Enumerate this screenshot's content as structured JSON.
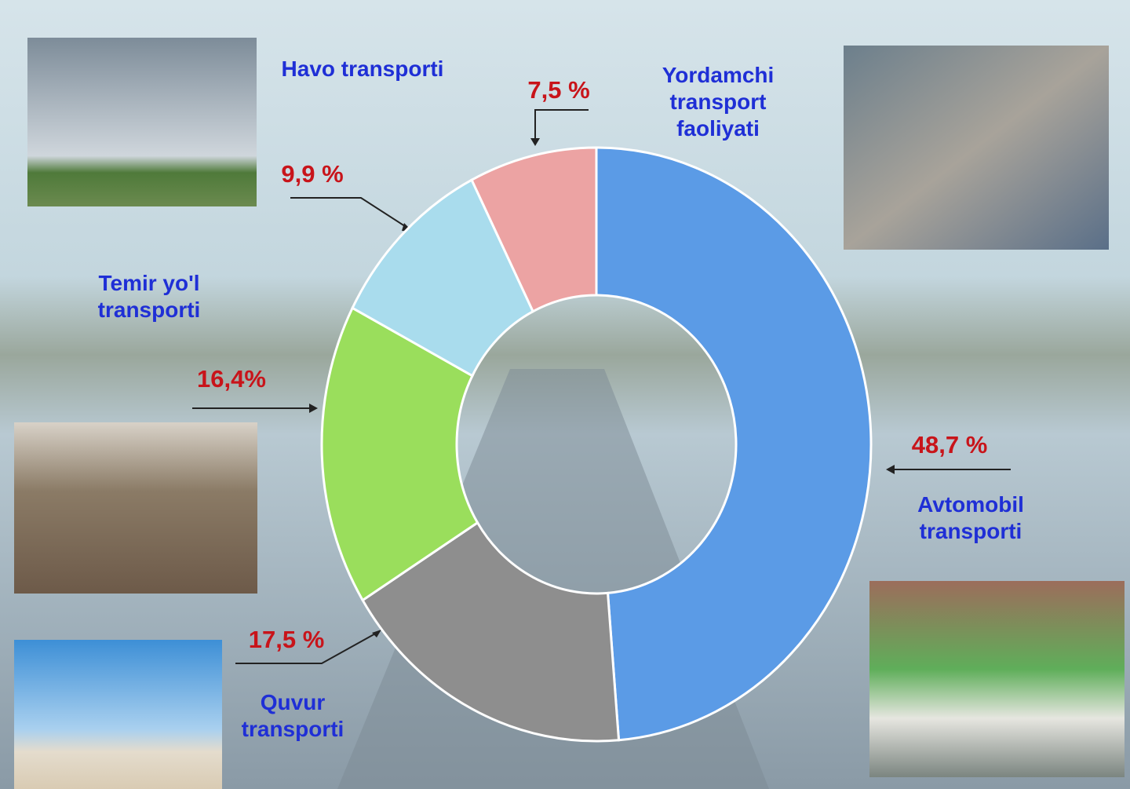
{
  "chart_data": {
    "type": "donut",
    "categories": [
      "Avtomobil\ntransporti",
      "Quvur\ntransporti",
      "Temir yo'l\ntransporti",
      "Havo transporti",
      "Yordamchi\ntransport\nfaoliyati"
    ],
    "values": [
      48.7,
      17.5,
      16.4,
      9.9,
      7.5
    ],
    "value_labels": [
      "48,7 %",
      "17,5 %",
      "16,4%",
      "9,9 %",
      "7,5 %"
    ],
    "colors": [
      "#5b9be6",
      "#8e8e8e",
      "#9ade5c",
      "#a9dced",
      "#eca3a3"
    ]
  }
}
